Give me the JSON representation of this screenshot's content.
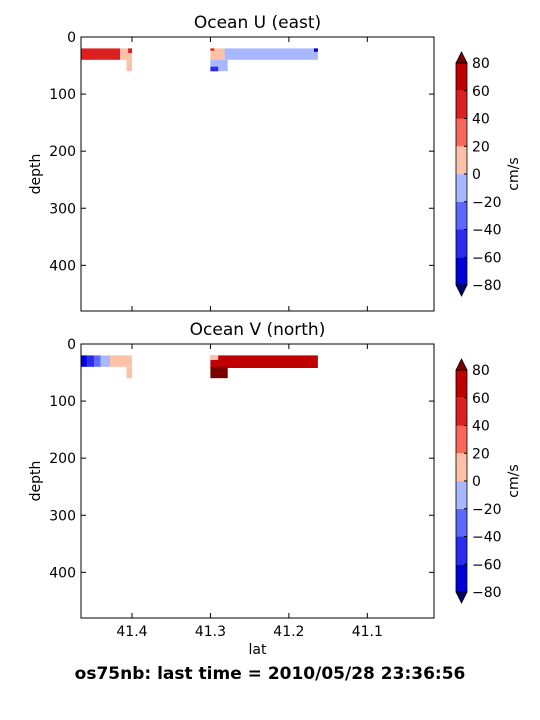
{
  "figure": {
    "suptitle": "os75nb: last time = 2010/05/28 23:36:56"
  },
  "chart_data": [
    {
      "type": "heatmap",
      "title": "Ocean U (east)",
      "xlabel": "",
      "ylabel": "depth",
      "xlim": [
        41.465,
        41.015
      ],
      "ylim": [
        480,
        0
      ],
      "xticks": [],
      "yticks": [
        0,
        100,
        200,
        300,
        400
      ],
      "colorbar": {
        "label": "cm/s",
        "ticks": [
          80,
          60,
          40,
          20,
          0,
          -20,
          -40,
          -60,
          -80
        ],
        "extend": "both",
        "levels": [
          -80,
          -60,
          -40,
          -20,
          0,
          20,
          40,
          60,
          80
        ],
        "colors": [
          "#0000d8",
          "#2a2af0",
          "#5c68ff",
          "#a8b8ff",
          "#ffc0a8",
          "#f86858",
          "#dc2020",
          "#c00000"
        ],
        "over_color": "#7a0000",
        "under_color": "#00006a"
      },
      "cells": [
        {
          "lat": [
            41.465,
            41.415
          ],
          "depth": [
            20,
            40
          ],
          "value": 40
        },
        {
          "lat": [
            41.415,
            41.4
          ],
          "depth": [
            20,
            40
          ],
          "value": 10
        },
        {
          "lat": [
            41.407,
            41.4
          ],
          "depth": [
            40,
            60
          ],
          "value": 10
        },
        {
          "lat": [
            41.405,
            41.4
          ],
          "depth": [
            20,
            28
          ],
          "value": 45
        },
        {
          "lat": [
            41.3,
            41.282
          ],
          "depth": [
            20,
            44
          ],
          "value": 10
        },
        {
          "lat": [
            41.282,
            41.163
          ],
          "depth": [
            20,
            40
          ],
          "value": -10
        },
        {
          "lat": [
            41.3,
            41.278
          ],
          "depth": [
            40,
            60
          ],
          "value": -10
        },
        {
          "lat": [
            41.3,
            41.29
          ],
          "depth": [
            52,
            60
          ],
          "value": -55
        },
        {
          "lat": [
            41.3,
            41.295
          ],
          "depth": [
            20,
            24
          ],
          "value": 45
        },
        {
          "lat": [
            41.168,
            41.163
          ],
          "depth": [
            20,
            26
          ],
          "value": -70
        }
      ]
    },
    {
      "type": "heatmap",
      "title": "Ocean V (north)",
      "xlabel": "lat",
      "ylabel": "depth",
      "xlim": [
        41.465,
        41.015
      ],
      "ylim": [
        480,
        0
      ],
      "xticks": [
        41.4,
        41.3,
        41.2,
        41.1
      ],
      "yticks": [
        0,
        100,
        200,
        300,
        400
      ],
      "colorbar": {
        "label": "cm/s",
        "ticks": [
          80,
          60,
          40,
          20,
          0,
          -20,
          -40,
          -60,
          -80
        ],
        "extend": "both",
        "levels": [
          -80,
          -60,
          -40,
          -20,
          0,
          20,
          40,
          60,
          80
        ],
        "colors": [
          "#0000d8",
          "#2a2af0",
          "#5c68ff",
          "#a8b8ff",
          "#ffc0a8",
          "#f86858",
          "#dc2020",
          "#c00000"
        ],
        "over_color": "#7a0000",
        "under_color": "#00006a"
      },
      "cells": [
        {
          "lat": [
            41.465,
            41.458
          ],
          "depth": [
            20,
            40
          ],
          "value": -70
        },
        {
          "lat": [
            41.458,
            41.448
          ],
          "depth": [
            20,
            40
          ],
          "value": -50
        },
        {
          "lat": [
            41.448,
            41.44
          ],
          "depth": [
            20,
            40
          ],
          "value": -30
        },
        {
          "lat": [
            41.44,
            41.428
          ],
          "depth": [
            20,
            40
          ],
          "value": -10
        },
        {
          "lat": [
            41.428,
            41.4
          ],
          "depth": [
            20,
            40
          ],
          "value": 10
        },
        {
          "lat": [
            41.407,
            41.4
          ],
          "depth": [
            40,
            60
          ],
          "value": 10
        },
        {
          "lat": [
            41.3,
            41.163
          ],
          "depth": [
            20,
            42
          ],
          "value": 70
        },
        {
          "lat": [
            41.3,
            41.278
          ],
          "depth": [
            40,
            60
          ],
          "value": 90
        },
        {
          "lat": [
            41.3,
            41.29
          ],
          "depth": [
            20,
            28
          ],
          "value": 10
        }
      ]
    }
  ]
}
